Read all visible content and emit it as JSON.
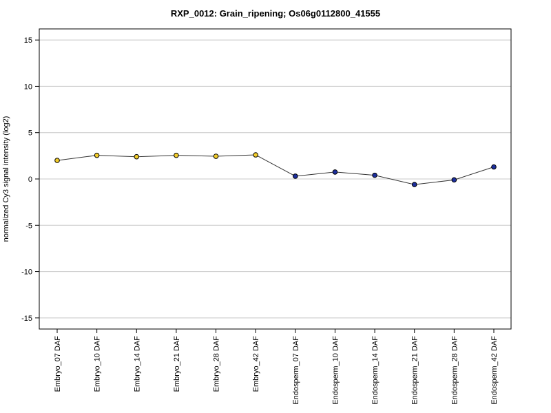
{
  "chart_data": {
    "type": "line",
    "title": "RXP_0012: Grain_ripening; Os06g0112800_41555",
    "xlabel": "",
    "ylabel": "normalized Cy3 signal intensity (log2)",
    "ylim": [
      -16.2,
      16.2
    ],
    "yticks": [
      -15,
      -10,
      -5,
      0,
      5,
      10,
      15
    ],
    "grid": true,
    "categories": [
      "Embryo_07 DAF",
      "Embryo_10 DAF",
      "Embryo_14 DAF",
      "Embryo_21 DAF",
      "Embryo_28 DAF",
      "Embryo_42 DAF",
      "Endosperm_07 DAF",
      "Endosperm_10 DAF",
      "Endosperm_14 DAF",
      "Endosperm_21 DAF",
      "Endosperm_28 DAF",
      "Endosperm_42 DAF"
    ],
    "values": [
      2.0,
      2.55,
      2.4,
      2.55,
      2.45,
      2.6,
      0.3,
      0.75,
      0.4,
      -0.6,
      -0.1,
      1.3
    ],
    "point_colors": [
      "#f2cc2a",
      "#f2cc2a",
      "#f2cc2a",
      "#f2cc2a",
      "#f2cc2a",
      "#f2cc2a",
      "#1d2f9e",
      "#1d2f9e",
      "#1d2f9e",
      "#1d2f9e",
      "#1d2f9e",
      "#1d2f9e"
    ],
    "line_color": "#333333",
    "grid_color": "#c8c8c8"
  }
}
